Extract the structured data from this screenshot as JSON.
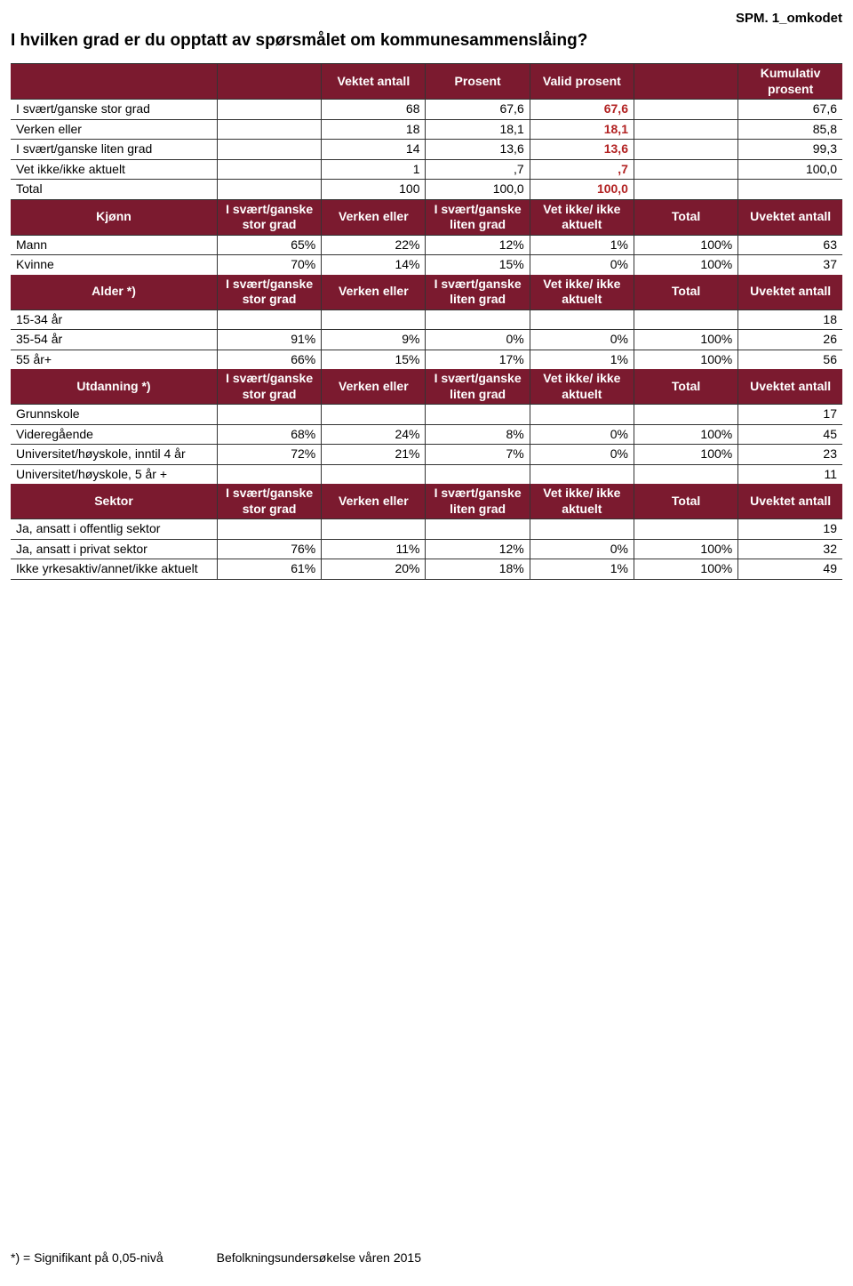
{
  "colors": {
    "header_bg": "#7b1a2f",
    "validcol": "#b22222",
    "text_white": "#ffffff"
  },
  "meta": {
    "code": "SPM. 1_omkodet",
    "title": "I hvilken grad er du opptatt av spørsmålet om kommunesammenslåing?",
    "footnote_left": "*) = Signifikant på 0,05-nivå",
    "footnote_right": "Befolkningsundersøkelse våren 2015"
  },
  "top_headers": {
    "c1": "",
    "c2": "Vektet antall",
    "c3": "Prosent",
    "c4": "Valid prosent",
    "c5": "",
    "c6": "Kumulativ prosent"
  },
  "top_rows": [
    {
      "label": "I svært/ganske stor grad",
      "c1": "",
      "c2": "68",
      "c3": "67,6",
      "c4": "67,6",
      "c5": "",
      "c6": "67,6"
    },
    {
      "label": "Verken eller",
      "c1": "",
      "c2": "18",
      "c3": "18,1",
      "c4": "18,1",
      "c5": "",
      "c6": "85,8"
    },
    {
      "label": "I svært/ganske liten grad",
      "c1": "",
      "c2": "14",
      "c3": "13,6",
      "c4": "13,6",
      "c5": "",
      "c6": "99,3"
    },
    {
      "label": "Vet ikke/ikke aktuelt",
      "c1": "",
      "c2": "1",
      "c3": ",7",
      "c4": ",7",
      "c5": "",
      "c6": "100,0"
    },
    {
      "label": "Total",
      "c1": "",
      "c2": "100",
      "c3": "100,0",
      "c4": "100,0",
      "c5": "",
      "c6": ""
    }
  ],
  "section_headers": {
    "c1": "I svært/ganske stor grad",
    "c2": "Verken eller",
    "c3": "I svært/ganske liten grad",
    "c4": "Vet ikke/ ikke aktuelt",
    "c5": "Total",
    "c6": "Uvektet antall"
  },
  "sections": [
    {
      "title": "Kjønn",
      "rows": [
        {
          "label": "Mann",
          "c1": "65%",
          "c2": "22%",
          "c3": "12%",
          "c4": "1%",
          "c5": "100%",
          "c6": "63"
        },
        {
          "label": "Kvinne",
          "c1": "70%",
          "c2": "14%",
          "c3": "15%",
          "c4": "0%",
          "c5": "100%",
          "c6": "37"
        }
      ]
    },
    {
      "title": "Alder *)",
      "rows": [
        {
          "label": "15-34 år",
          "c1": "",
          "c2": "",
          "c3": "",
          "c4": "",
          "c5": "",
          "c6": "18"
        },
        {
          "label": "35-54 år",
          "c1": "91%",
          "c2": "9%",
          "c3": "0%",
          "c4": "0%",
          "c5": "100%",
          "c6": "26"
        },
        {
          "label": "55 år+",
          "c1": "66%",
          "c2": "15%",
          "c3": "17%",
          "c4": "1%",
          "c5": "100%",
          "c6": "56"
        }
      ]
    },
    {
      "title": "Utdanning *)",
      "rows": [
        {
          "label": "Grunnskole",
          "c1": "",
          "c2": "",
          "c3": "",
          "c4": "",
          "c5": "",
          "c6": "17"
        },
        {
          "label": "Videregående",
          "c1": "68%",
          "c2": "24%",
          "c3": "8%",
          "c4": "0%",
          "c5": "100%",
          "c6": "45"
        },
        {
          "label": "Universitet/høyskole, inntil 4 år",
          "c1": "72%",
          "c2": "21%",
          "c3": "7%",
          "c4": "0%",
          "c5": "100%",
          "c6": "23"
        },
        {
          "label": "Universitet/høyskole, 5 år +",
          "c1": "",
          "c2": "",
          "c3": "",
          "c4": "",
          "c5": "",
          "c6": "11"
        }
      ]
    },
    {
      "title": "Sektor",
      "rows": [
        {
          "label": "Ja, ansatt i offentlig sektor",
          "c1": "",
          "c2": "",
          "c3": "",
          "c4": "",
          "c5": "",
          "c6": "19"
        },
        {
          "label": "Ja, ansatt i privat sektor",
          "c1": "76%",
          "c2": "11%",
          "c3": "12%",
          "c4": "0%",
          "c5": "100%",
          "c6": "32"
        },
        {
          "label": "Ikke yrkesaktiv/annet/ikke aktuelt",
          "c1": "61%",
          "c2": "20%",
          "c3": "18%",
          "c4": "1%",
          "c5": "100%",
          "c6": "49"
        }
      ]
    }
  ]
}
